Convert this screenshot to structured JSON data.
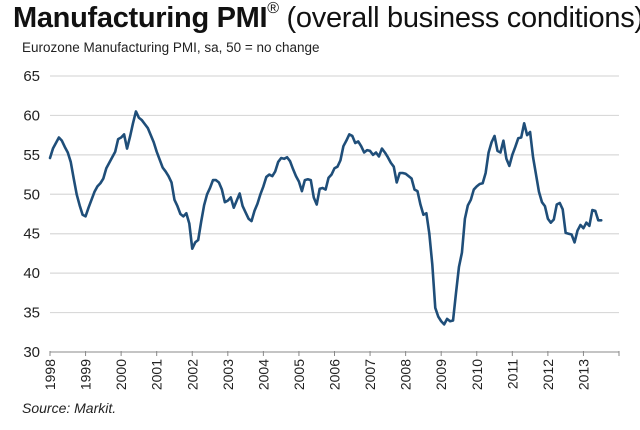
{
  "header": {
    "title_bold": "Manufacturing PMI",
    "title_reg": "®",
    "title_rest": " (overall business conditions)",
    "subtitle": "Eurozone Manufacturing PMI, sa, 50 = no change"
  },
  "footer": {
    "source": "Source: Markit."
  },
  "chart_data": {
    "type": "line",
    "title": "Manufacturing PMI® (overall business conditions)",
    "subtitle": "Eurozone Manufacturing PMI, sa, 50 = no change",
    "xlabel": "",
    "ylabel": "",
    "ylim": [
      30,
      65
    ],
    "yticks": [
      "30",
      "35",
      "40",
      "45",
      "50",
      "55",
      "60",
      "65"
    ],
    "xticks": [
      "1998",
      "1999",
      "2000",
      "2001",
      "2002",
      "2003",
      "2004",
      "2005",
      "2006",
      "2007",
      "2008",
      "2009",
      "2010",
      "2011",
      "2012",
      "2013"
    ],
    "xlim": [
      "1998-01",
      "2014-01"
    ],
    "grid": "horizontal",
    "line_color": "#1f4e79",
    "x_start": "1998-01",
    "x_frequency": "monthly",
    "series": [
      {
        "name": "Eurozone Manufacturing PMI",
        "values": [
          54.6,
          55.8,
          56.5,
          57.2,
          56.8,
          56.0,
          55.3,
          54.1,
          52.0,
          50.0,
          48.6,
          47.4,
          47.2,
          48.3,
          49.3,
          50.3,
          51.0,
          51.4,
          52.0,
          53.3,
          54.0,
          54.7,
          55.4,
          57.0,
          57.2,
          57.6,
          55.8,
          57.3,
          59.0,
          60.5,
          59.7,
          59.4,
          58.9,
          58.4,
          57.5,
          56.6,
          55.4,
          54.4,
          53.4,
          52.9,
          52.3,
          51.5,
          49.3,
          48.5,
          47.5,
          47.2,
          47.6,
          46.3,
          43.1,
          43.9,
          44.2,
          46.5,
          48.6,
          50.0,
          50.8,
          51.8,
          51.8,
          51.5,
          50.6,
          49.0,
          49.2,
          49.6,
          48.3,
          49.2,
          50.1,
          48.5,
          47.7,
          46.9,
          46.6,
          47.9,
          48.8,
          50.0,
          51.0,
          52.2,
          52.5,
          52.3,
          52.9,
          54.1,
          54.6,
          54.5,
          54.7,
          54.2,
          53.2,
          52.3,
          51.6,
          50.4,
          51.8,
          51.9,
          51.8,
          49.6,
          48.7,
          50.7,
          50.8,
          50.6,
          52.1,
          52.5,
          53.3,
          53.5,
          54.3,
          56.1,
          56.8,
          57.6,
          57.4,
          56.5,
          56.7,
          56.1,
          55.3,
          55.6,
          55.5,
          55.0,
          55.3,
          54.8,
          55.8,
          55.3,
          54.7,
          54.0,
          53.5,
          51.5,
          52.7,
          52.7,
          52.6,
          52.3,
          52.0,
          50.6,
          50.4,
          48.7,
          47.4,
          47.6,
          45.0,
          41.1,
          35.6,
          34.5,
          33.9,
          33.5,
          34.2,
          33.9,
          34.0,
          37.5,
          40.8,
          42.6,
          46.9,
          48.6,
          49.3,
          50.6,
          51.0,
          51.3,
          51.4,
          52.7,
          55.3,
          56.6,
          57.4,
          55.5,
          55.3,
          56.8,
          54.5,
          53.6,
          55.0,
          56.0,
          57.1,
          57.2,
          59.0,
          57.5,
          57.9,
          54.7,
          52.5,
          50.3,
          49.0,
          48.5,
          46.9,
          46.4,
          46.8,
          48.7,
          48.9,
          48.1,
          45.1,
          45.0,
          44.9,
          43.9,
          45.4,
          46.1,
          45.7,
          46.4,
          46.0,
          48.0,
          47.9,
          46.7,
          46.7
        ]
      }
    ]
  }
}
